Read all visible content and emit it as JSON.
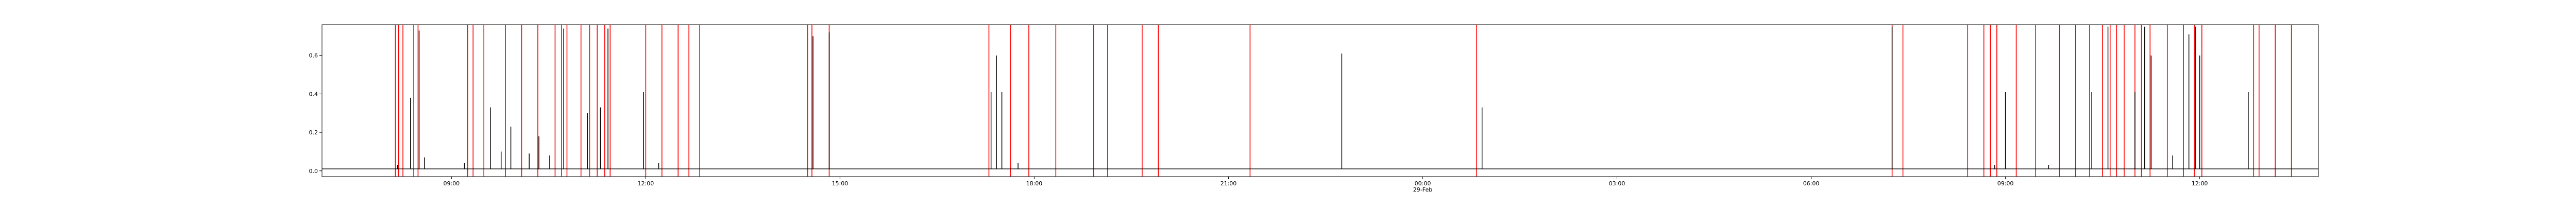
{
  "chart_data": {
    "type": "line",
    "title": "",
    "xlabel": "",
    "ylabel": "",
    "xlim": [
      "2024-02-28T07:00",
      "2024-02-29T13:50"
    ],
    "ylim": [
      -0.03,
      0.76
    ],
    "grid": false,
    "x_ticks": [
      {
        "t": "2024-02-28T09:00",
        "label": "09:00"
      },
      {
        "t": "2024-02-28T12:00",
        "label": "12:00"
      },
      {
        "t": "2024-02-28T15:00",
        "label": "15:00"
      },
      {
        "t": "2024-02-28T18:00",
        "label": "18:00"
      },
      {
        "t": "2024-02-28T21:00",
        "label": "21:00"
      },
      {
        "t": "2024-02-29T00:00",
        "label": "00:00",
        "sublabel": "29-Feb"
      },
      {
        "t": "2024-02-29T03:00",
        "label": "03:00"
      },
      {
        "t": "2024-02-29T06:00",
        "label": "06:00"
      },
      {
        "t": "2024-02-29T09:00",
        "label": "09:00"
      },
      {
        "t": "2024-02-29T12:00",
        "label": "12:00"
      }
    ],
    "y_ticks": [
      0.0,
      0.2,
      0.4,
      0.6
    ],
    "y_tick_labels": [
      "0.0",
      "0.2",
      "0.4",
      "0.6"
    ],
    "baseline_value": 0.01,
    "series": [
      {
        "color": "#000000",
        "points": [
          {
            "t": "2024-02-28T08:10",
            "y": 0.03
          },
          {
            "t": "2024-02-28T08:22",
            "y": 0.38
          },
          {
            "t": "2024-02-28T08:30",
            "y": 0.73
          },
          {
            "t": "2024-02-28T08:35",
            "y": 0.07
          },
          {
            "t": "2024-02-28T09:12",
            "y": 0.04
          },
          {
            "t": "2024-02-28T09:36",
            "y": 0.33
          },
          {
            "t": "2024-02-28T09:46",
            "y": 0.1
          },
          {
            "t": "2024-02-28T09:55",
            "y": 0.23
          },
          {
            "t": "2024-02-28T10:12",
            "y": 0.09
          },
          {
            "t": "2024-02-28T10:21",
            "y": 0.18
          },
          {
            "t": "2024-02-28T10:31",
            "y": 0.08
          },
          {
            "t": "2024-02-28T10:44",
            "y": 0.74
          },
          {
            "t": "2024-02-28T11:06",
            "y": 0.3
          },
          {
            "t": "2024-02-28T11:18",
            "y": 0.33
          },
          {
            "t": "2024-02-28T11:25",
            "y": 0.74
          },
          {
            "t": "2024-02-28T11:58",
            "y": 0.41
          },
          {
            "t": "2024-02-28T12:12",
            "y": 0.04
          },
          {
            "t": "2024-02-28T14:35",
            "y": 0.7
          },
          {
            "t": "2024-02-28T14:50",
            "y": 0.72
          },
          {
            "t": "2024-02-28T17:20",
            "y": 0.41
          },
          {
            "t": "2024-02-28T17:25",
            "y": 0.6
          },
          {
            "t": "2024-02-28T17:30",
            "y": 0.41
          },
          {
            "t": "2024-02-28T17:45",
            "y": 0.04
          },
          {
            "t": "2024-02-28T22:45",
            "y": 0.61
          },
          {
            "t": "2024-02-29T00:55",
            "y": 0.33
          },
          {
            "t": "2024-02-29T07:15",
            "y": 0.75
          },
          {
            "t": "2024-02-29T08:50",
            "y": 0.03
          },
          {
            "t": "2024-02-29T09:00",
            "y": 0.41
          },
          {
            "t": "2024-02-29T09:40",
            "y": 0.03
          },
          {
            "t": "2024-02-29T10:20",
            "y": 0.41
          },
          {
            "t": "2024-02-29T10:35",
            "y": 0.75
          },
          {
            "t": "2024-02-29T11:00",
            "y": 0.41
          },
          {
            "t": "2024-02-29T11:09",
            "y": 0.75
          },
          {
            "t": "2024-02-29T11:15",
            "y": 0.6
          },
          {
            "t": "2024-02-29T11:35",
            "y": 0.08
          },
          {
            "t": "2024-02-29T11:50",
            "y": 0.71
          },
          {
            "t": "2024-02-29T11:56",
            "y": 0.75
          },
          {
            "t": "2024-02-29T12:00",
            "y": 0.6
          },
          {
            "t": "2024-02-29T12:45",
            "y": 0.41
          }
        ]
      }
    ],
    "vertical_markers": {
      "color": "#ff0000",
      "times": [
        "2024-02-28T08:08",
        "2024-02-28T08:11",
        "2024-02-28T08:15",
        "2024-02-28T08:25",
        "2024-02-28T08:29",
        "2024-02-28T09:15",
        "2024-02-28T09:20",
        "2024-02-28T09:30",
        "2024-02-28T09:50",
        "2024-02-28T10:05",
        "2024-02-28T10:20",
        "2024-02-28T10:36",
        "2024-02-28T10:42",
        "2024-02-28T10:47",
        "2024-02-28T11:00",
        "2024-02-28T11:08",
        "2024-02-28T11:15",
        "2024-02-28T11:22",
        "2024-02-28T11:27",
        "2024-02-28T12:00",
        "2024-02-28T12:15",
        "2024-02-28T12:30",
        "2024-02-28T12:40",
        "2024-02-28T12:50",
        "2024-02-28T14:30",
        "2024-02-28T14:34",
        "2024-02-28T14:50",
        "2024-02-28T17:18",
        "2024-02-28T17:38",
        "2024-02-28T17:55",
        "2024-02-28T18:20",
        "2024-02-28T18:55",
        "2024-02-28T19:08",
        "2024-02-28T19:40",
        "2024-02-28T19:55",
        "2024-02-28T21:20",
        "2024-02-29T00:50",
        "2024-02-29T07:15",
        "2024-02-29T07:25",
        "2024-02-29T08:25",
        "2024-02-29T08:40",
        "2024-02-29T08:46",
        "2024-02-29T08:52",
        "2024-02-29T09:10",
        "2024-02-29T09:28",
        "2024-02-29T09:50",
        "2024-02-29T10:05",
        "2024-02-29T10:18",
        "2024-02-29T10:30",
        "2024-02-29T10:37",
        "2024-02-29T10:43",
        "2024-02-29T10:50",
        "2024-02-29T11:00",
        "2024-02-29T11:06",
        "2024-02-29T11:14",
        "2024-02-29T11:30",
        "2024-02-29T11:45",
        "2024-02-29T11:55",
        "2024-02-29T12:02",
        "2024-02-29T12:50",
        "2024-02-29T12:55",
        "2024-02-29T13:10",
        "2024-02-29T13:25"
      ]
    }
  }
}
